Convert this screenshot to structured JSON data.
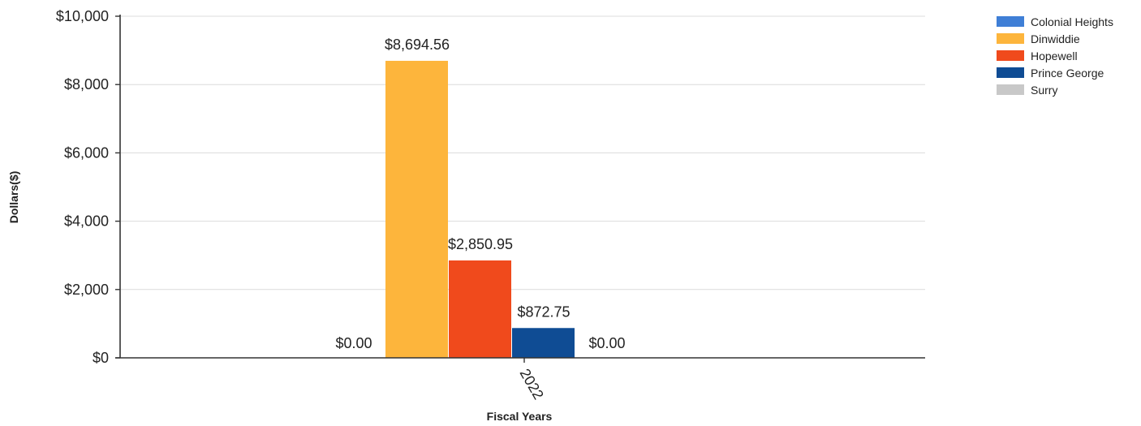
{
  "chart_data": {
    "type": "bar",
    "title": "",
    "xlabel": "Fiscal Years",
    "ylabel": "Dollars($)",
    "categories": [
      "2022"
    ],
    "ylim": [
      0,
      10000
    ],
    "y_ticks": [
      {
        "value": 0,
        "label": "$0"
      },
      {
        "value": 2000,
        "label": "$2,000"
      },
      {
        "value": 4000,
        "label": "$4,000"
      },
      {
        "value": 6000,
        "label": "$6,000"
      },
      {
        "value": 8000,
        "label": "$8,000"
      },
      {
        "value": 10000,
        "label": "$10,000"
      }
    ],
    "grid": true,
    "legend_position": "top-right",
    "series": [
      {
        "name": "Colonial Heights",
        "color": "#3f7fd6",
        "values": [
          0
        ],
        "value_labels": [
          "$0.00"
        ]
      },
      {
        "name": "Dinwiddie",
        "color": "#fdb53c",
        "values": [
          8694.56
        ],
        "value_labels": [
          "$8,694.56"
        ]
      },
      {
        "name": "Hopewell",
        "color": "#f04a1c",
        "values": [
          2850.95
        ],
        "value_labels": [
          "$2,850.95"
        ]
      },
      {
        "name": "Prince George",
        "color": "#0f4c94",
        "values": [
          872.75
        ],
        "value_labels": [
          "$872.75"
        ]
      },
      {
        "name": "Surry",
        "color": "#c8c8c8",
        "values": [
          0
        ],
        "value_labels": [
          "$0.00"
        ]
      }
    ]
  }
}
